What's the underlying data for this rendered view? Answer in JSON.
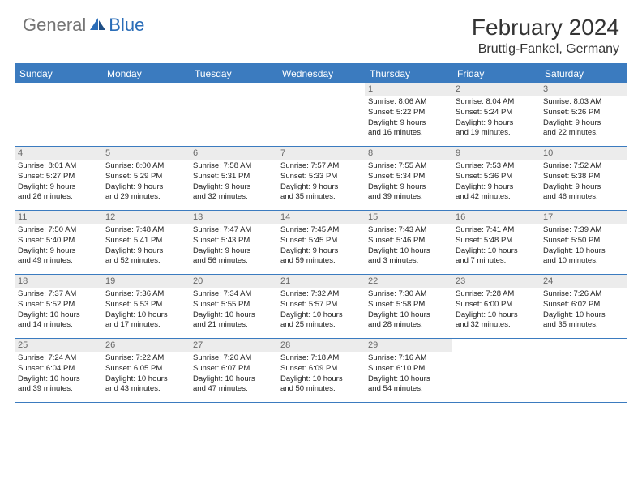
{
  "brand": {
    "part1": "General",
    "part2": "Blue"
  },
  "title": "February 2024",
  "location": "Bruttig-Fankel, Germany",
  "colors": {
    "header_blue": "#3b7bbf",
    "daynum_bg": "#ececec",
    "daynum_fg": "#676767",
    "text": "#222222",
    "logo_gray": "#757575",
    "logo_blue": "#2a6db8"
  },
  "weekdays": [
    "Sunday",
    "Monday",
    "Tuesday",
    "Wednesday",
    "Thursday",
    "Friday",
    "Saturday"
  ],
  "weeks": [
    [
      null,
      null,
      null,
      null,
      {
        "n": "1",
        "sr": "Sunrise: 8:06 AM",
        "ss": "Sunset: 5:22 PM",
        "d1": "Daylight: 9 hours",
        "d2": "and 16 minutes."
      },
      {
        "n": "2",
        "sr": "Sunrise: 8:04 AM",
        "ss": "Sunset: 5:24 PM",
        "d1": "Daylight: 9 hours",
        "d2": "and 19 minutes."
      },
      {
        "n": "3",
        "sr": "Sunrise: 8:03 AM",
        "ss": "Sunset: 5:26 PM",
        "d1": "Daylight: 9 hours",
        "d2": "and 22 minutes."
      }
    ],
    [
      {
        "n": "4",
        "sr": "Sunrise: 8:01 AM",
        "ss": "Sunset: 5:27 PM",
        "d1": "Daylight: 9 hours",
        "d2": "and 26 minutes."
      },
      {
        "n": "5",
        "sr": "Sunrise: 8:00 AM",
        "ss": "Sunset: 5:29 PM",
        "d1": "Daylight: 9 hours",
        "d2": "and 29 minutes."
      },
      {
        "n": "6",
        "sr": "Sunrise: 7:58 AM",
        "ss": "Sunset: 5:31 PM",
        "d1": "Daylight: 9 hours",
        "d2": "and 32 minutes."
      },
      {
        "n": "7",
        "sr": "Sunrise: 7:57 AM",
        "ss": "Sunset: 5:33 PM",
        "d1": "Daylight: 9 hours",
        "d2": "and 35 minutes."
      },
      {
        "n": "8",
        "sr": "Sunrise: 7:55 AM",
        "ss": "Sunset: 5:34 PM",
        "d1": "Daylight: 9 hours",
        "d2": "and 39 minutes."
      },
      {
        "n": "9",
        "sr": "Sunrise: 7:53 AM",
        "ss": "Sunset: 5:36 PM",
        "d1": "Daylight: 9 hours",
        "d2": "and 42 minutes."
      },
      {
        "n": "10",
        "sr": "Sunrise: 7:52 AM",
        "ss": "Sunset: 5:38 PM",
        "d1": "Daylight: 9 hours",
        "d2": "and 46 minutes."
      }
    ],
    [
      {
        "n": "11",
        "sr": "Sunrise: 7:50 AM",
        "ss": "Sunset: 5:40 PM",
        "d1": "Daylight: 9 hours",
        "d2": "and 49 minutes."
      },
      {
        "n": "12",
        "sr": "Sunrise: 7:48 AM",
        "ss": "Sunset: 5:41 PM",
        "d1": "Daylight: 9 hours",
        "d2": "and 52 minutes."
      },
      {
        "n": "13",
        "sr": "Sunrise: 7:47 AM",
        "ss": "Sunset: 5:43 PM",
        "d1": "Daylight: 9 hours",
        "d2": "and 56 minutes."
      },
      {
        "n": "14",
        "sr": "Sunrise: 7:45 AM",
        "ss": "Sunset: 5:45 PM",
        "d1": "Daylight: 9 hours",
        "d2": "and 59 minutes."
      },
      {
        "n": "15",
        "sr": "Sunrise: 7:43 AM",
        "ss": "Sunset: 5:46 PM",
        "d1": "Daylight: 10 hours",
        "d2": "and 3 minutes."
      },
      {
        "n": "16",
        "sr": "Sunrise: 7:41 AM",
        "ss": "Sunset: 5:48 PM",
        "d1": "Daylight: 10 hours",
        "d2": "and 7 minutes."
      },
      {
        "n": "17",
        "sr": "Sunrise: 7:39 AM",
        "ss": "Sunset: 5:50 PM",
        "d1": "Daylight: 10 hours",
        "d2": "and 10 minutes."
      }
    ],
    [
      {
        "n": "18",
        "sr": "Sunrise: 7:37 AM",
        "ss": "Sunset: 5:52 PM",
        "d1": "Daylight: 10 hours",
        "d2": "and 14 minutes."
      },
      {
        "n": "19",
        "sr": "Sunrise: 7:36 AM",
        "ss": "Sunset: 5:53 PM",
        "d1": "Daylight: 10 hours",
        "d2": "and 17 minutes."
      },
      {
        "n": "20",
        "sr": "Sunrise: 7:34 AM",
        "ss": "Sunset: 5:55 PM",
        "d1": "Daylight: 10 hours",
        "d2": "and 21 minutes."
      },
      {
        "n": "21",
        "sr": "Sunrise: 7:32 AM",
        "ss": "Sunset: 5:57 PM",
        "d1": "Daylight: 10 hours",
        "d2": "and 25 minutes."
      },
      {
        "n": "22",
        "sr": "Sunrise: 7:30 AM",
        "ss": "Sunset: 5:58 PM",
        "d1": "Daylight: 10 hours",
        "d2": "and 28 minutes."
      },
      {
        "n": "23",
        "sr": "Sunrise: 7:28 AM",
        "ss": "Sunset: 6:00 PM",
        "d1": "Daylight: 10 hours",
        "d2": "and 32 minutes."
      },
      {
        "n": "24",
        "sr": "Sunrise: 7:26 AM",
        "ss": "Sunset: 6:02 PM",
        "d1": "Daylight: 10 hours",
        "d2": "and 35 minutes."
      }
    ],
    [
      {
        "n": "25",
        "sr": "Sunrise: 7:24 AM",
        "ss": "Sunset: 6:04 PM",
        "d1": "Daylight: 10 hours",
        "d2": "and 39 minutes."
      },
      {
        "n": "26",
        "sr": "Sunrise: 7:22 AM",
        "ss": "Sunset: 6:05 PM",
        "d1": "Daylight: 10 hours",
        "d2": "and 43 minutes."
      },
      {
        "n": "27",
        "sr": "Sunrise: 7:20 AM",
        "ss": "Sunset: 6:07 PM",
        "d1": "Daylight: 10 hours",
        "d2": "and 47 minutes."
      },
      {
        "n": "28",
        "sr": "Sunrise: 7:18 AM",
        "ss": "Sunset: 6:09 PM",
        "d1": "Daylight: 10 hours",
        "d2": "and 50 minutes."
      },
      {
        "n": "29",
        "sr": "Sunrise: 7:16 AM",
        "ss": "Sunset: 6:10 PM",
        "d1": "Daylight: 10 hours",
        "d2": "and 54 minutes."
      },
      null,
      null
    ]
  ]
}
